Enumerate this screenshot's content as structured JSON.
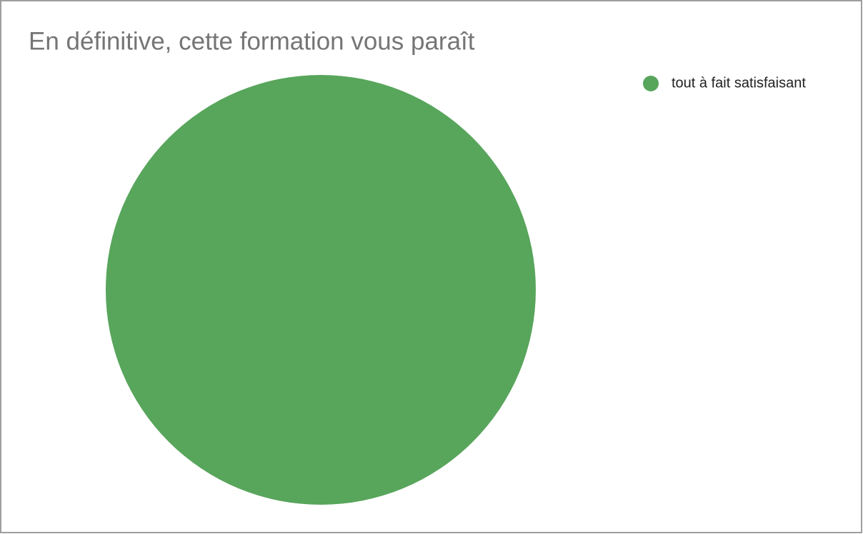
{
  "chart_data": {
    "type": "pie",
    "title": "En définitive, cette formation vous paraît",
    "series": [
      {
        "name": "tout à fait satisfaisant",
        "color": "#58a55c",
        "values": [
          100
        ]
      }
    ],
    "legend": "top-right"
  }
}
